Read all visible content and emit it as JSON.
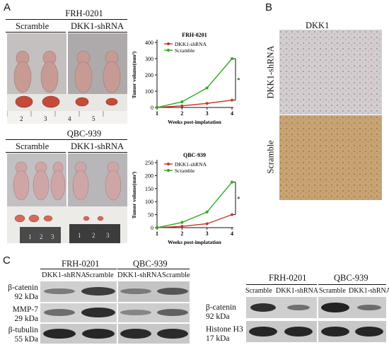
{
  "panels": {
    "a": "A",
    "b": "B",
    "c": "C"
  },
  "panel_a": {
    "top": {
      "cell_line": "FRH-0201",
      "groups": [
        "Scramble",
        "DKK1-shRNA"
      ],
      "ruler_digits": [
        "2",
        "3",
        "4",
        "5"
      ]
    },
    "bottom": {
      "cell_line": "QBC-939",
      "groups": [
        "Scramble",
        "DKK1-shRNA"
      ],
      "ruler_digits": [
        "1",
        "2",
        "3",
        "1",
        "2",
        "3"
      ]
    }
  },
  "panel_b": {
    "title": "DKK1",
    "rows": [
      "DKK1-shRNA",
      "Scramble"
    ]
  },
  "panel_c_left": {
    "cell_lines": [
      "FRH-0201",
      "QBC-939"
    ],
    "lanes": [
      "DKK1-shRNA",
      "Scramble",
      "DKK1-shRNA",
      "Scramble"
    ],
    "proteins": [
      {
        "name": "β-catenin",
        "kda": "92 kDa"
      },
      {
        "name": "MMP-7",
        "kda": "29 kDa"
      },
      {
        "name": "β-tubulin",
        "kda": "55 kDa"
      }
    ]
  },
  "panel_c_right": {
    "cell_lines": [
      "FRH-0201",
      "QBC-939"
    ],
    "lanes": [
      "Scramble",
      "DKK1-shRNA",
      "Scramble",
      "DKK1-shRNA"
    ],
    "proteins": [
      {
        "name": "β-catenin",
        "kda": "92 kDa"
      },
      {
        "name": "Histone H3",
        "kda": "17 kDa"
      }
    ]
  },
  "colors": {
    "dkk1_series": "#c0392b",
    "scramble_series": "#2eaa1f"
  },
  "chart_data": [
    {
      "type": "line",
      "title": "FRH-0201",
      "xlabel": "Weeks post-implatation",
      "ylabel": "Tumor volume(mm³)",
      "x": [
        1,
        2,
        3,
        4
      ],
      "xlim": [
        1,
        4
      ],
      "ylim": [
        0,
        400
      ],
      "yticks": [
        0,
        100,
        200,
        300,
        400
      ],
      "series": [
        {
          "name": "DKK1-shRNA",
          "values": [
            0,
            10,
            25,
            45
          ]
        },
        {
          "name": "Scramble",
          "values": [
            0,
            35,
            120,
            300
          ]
        }
      ],
      "annotation": "**",
      "legend": "top-left"
    },
    {
      "type": "line",
      "title": "QBC-939",
      "xlabel": "Weeks post-implatation",
      "ylabel": "Tumor volume(mm³)",
      "x": [
        1,
        2,
        3,
        4
      ],
      "xlim": [
        1,
        4
      ],
      "ylim": [
        0,
        250
      ],
      "yticks": [
        0,
        50,
        100,
        150,
        200,
        250
      ],
      "series": [
        {
          "name": "DKK1-shRNA",
          "values": [
            0,
            5,
            15,
            50
          ]
        },
        {
          "name": "Scramble",
          "values": [
            0,
            20,
            60,
            175
          ]
        }
      ],
      "annotation": "**",
      "legend": "top-left"
    }
  ]
}
